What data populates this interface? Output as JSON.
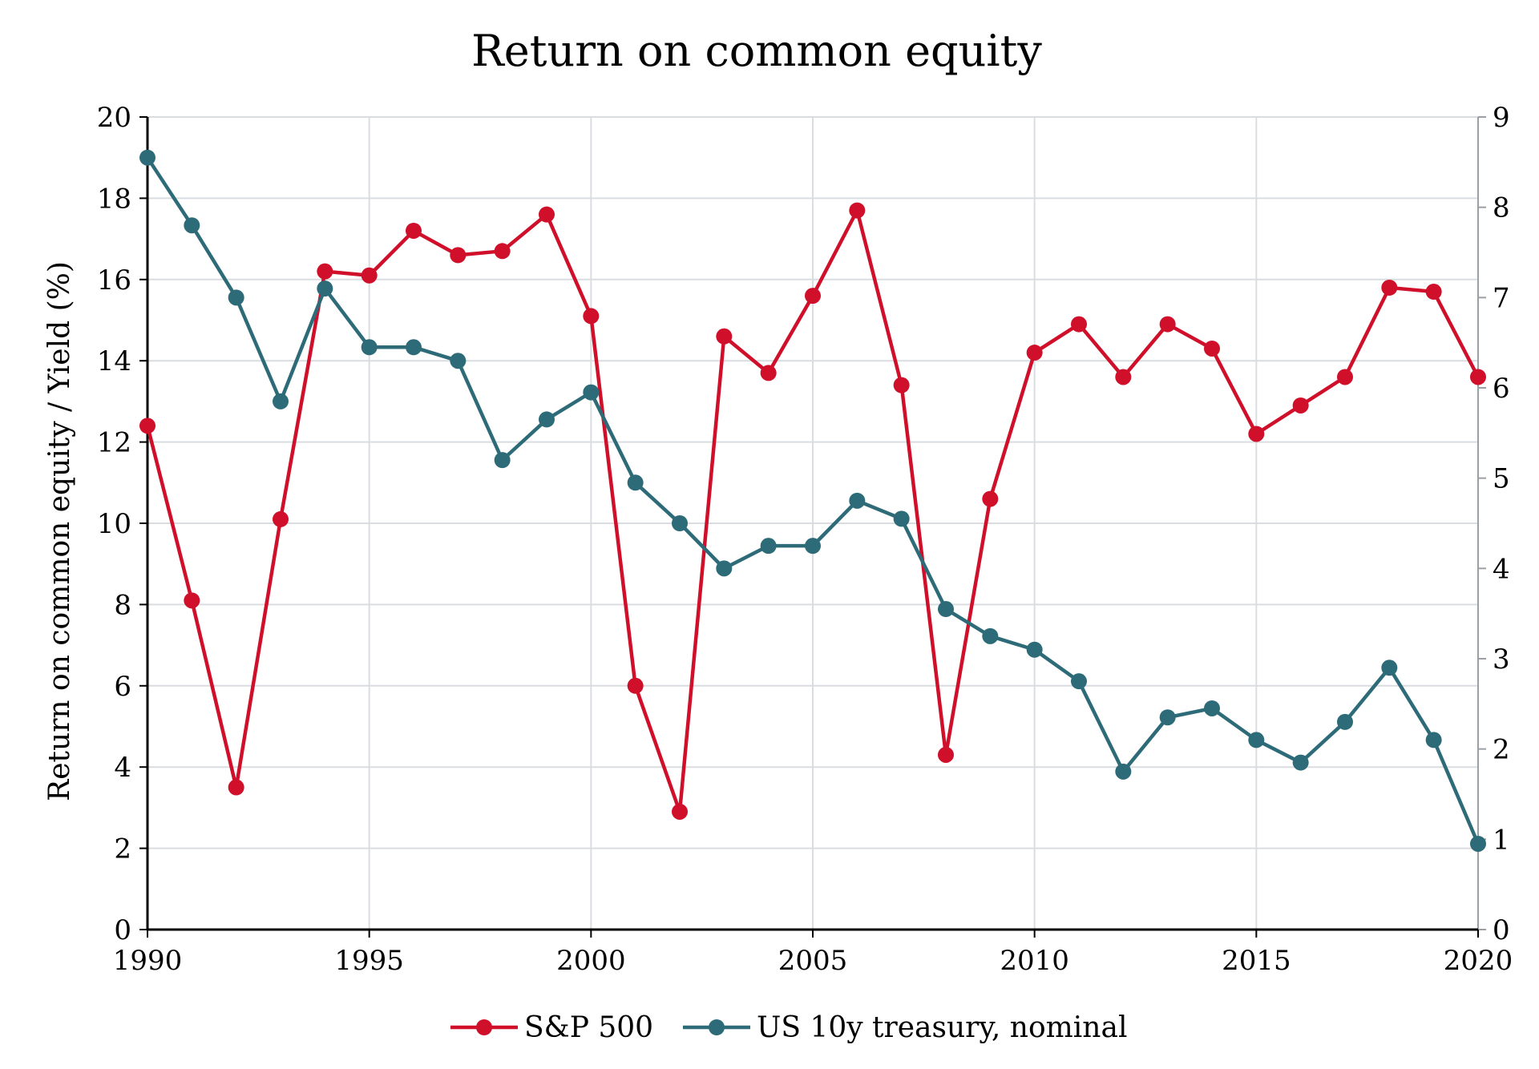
{
  "chart_data": {
    "type": "line",
    "title": "Return on common equity",
    "xlabel": "",
    "ylabel": "Return on common equity / Yield (%)",
    "y2label": "",
    "x": [
      1990,
      1991,
      1992,
      1993,
      1994,
      1995,
      1996,
      1997,
      1998,
      1999,
      2000,
      2001,
      2002,
      2003,
      2004,
      2005,
      2006,
      2007,
      2008,
      2009,
      2010,
      2011,
      2012,
      2013,
      2014,
      2015,
      2016,
      2017,
      2018,
      2019,
      2020
    ],
    "xlim": [
      1990,
      2020
    ],
    "x_ticks": [
      "1990",
      "1995",
      "2000",
      "2005",
      "2010",
      "2015",
      "2020"
    ],
    "ylim": [
      0,
      20
    ],
    "y_ticks": [
      "0",
      "2",
      "4",
      "6",
      "8",
      "10",
      "12",
      "14",
      "16",
      "18",
      "20"
    ],
    "y2lim": [
      0,
      9
    ],
    "y2_ticks": [
      "0",
      "1",
      "2",
      "3",
      "4",
      "5",
      "6",
      "7",
      "8",
      "9"
    ],
    "grid": true,
    "legend_position": "bottom",
    "series": [
      {
        "name": "S&P 500",
        "axis": "left",
        "color": "#d0102a",
        "values": [
          12.4,
          8.1,
          3.5,
          10.1,
          16.2,
          16.1,
          17.2,
          16.6,
          16.7,
          17.6,
          15.1,
          6.0,
          2.9,
          14.6,
          13.7,
          15.6,
          17.7,
          13.4,
          4.3,
          10.6,
          14.2,
          14.9,
          13.6,
          14.9,
          14.3,
          12.2,
          12.9,
          13.6,
          15.8,
          15.7,
          13.6
        ]
      },
      {
        "name": "US 10y treasury, nominal",
        "axis": "right",
        "color": "#2e6b78",
        "values": [
          8.55,
          7.8,
          7.0,
          5.85,
          7.1,
          6.45,
          6.45,
          6.3,
          5.2,
          5.65,
          5.95,
          4.95,
          4.5,
          4.0,
          4.25,
          4.25,
          4.75,
          4.55,
          3.55,
          3.25,
          3.1,
          2.75,
          1.75,
          2.35,
          2.45,
          2.1,
          1.85,
          2.3,
          2.9,
          2.1,
          0.95
        ]
      }
    ]
  }
}
